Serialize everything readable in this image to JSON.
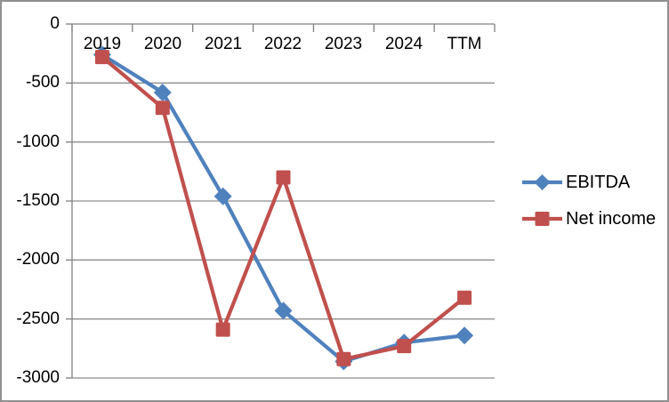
{
  "frame": {
    "background": "#ffffff",
    "border_color": "#909090"
  },
  "chart_data": {
    "type": "line",
    "title": "",
    "xlabel": "",
    "ylabel": "",
    "categories": [
      "2019",
      "2020",
      "2021",
      "2022",
      "2023",
      "2024",
      "TTM"
    ],
    "series": [
      {
        "name": "EBITDA",
        "color": "#4f81bd",
        "marker": "diamond",
        "values": [
          -260,
          -580,
          -1460,
          -2430,
          -2860,
          -2700,
          -2640
        ]
      },
      {
        "name": "Net income",
        "color": "#c0504d",
        "marker": "square",
        "values": [
          -280,
          -710,
          -2590,
          -1300,
          -2840,
          -2730,
          -2320
        ]
      }
    ],
    "ylim": [
      -3000,
      0
    ],
    "ytick_interval": 500,
    "ytick_labels": [
      "0",
      "-500",
      "-1000",
      "-1500",
      "-2000",
      "-2500",
      "-3000"
    ],
    "grid": true,
    "legend_position": "right",
    "axis_color": "#808080",
    "gridline_color": "#8e8e8e",
    "text_color": "#000000"
  }
}
